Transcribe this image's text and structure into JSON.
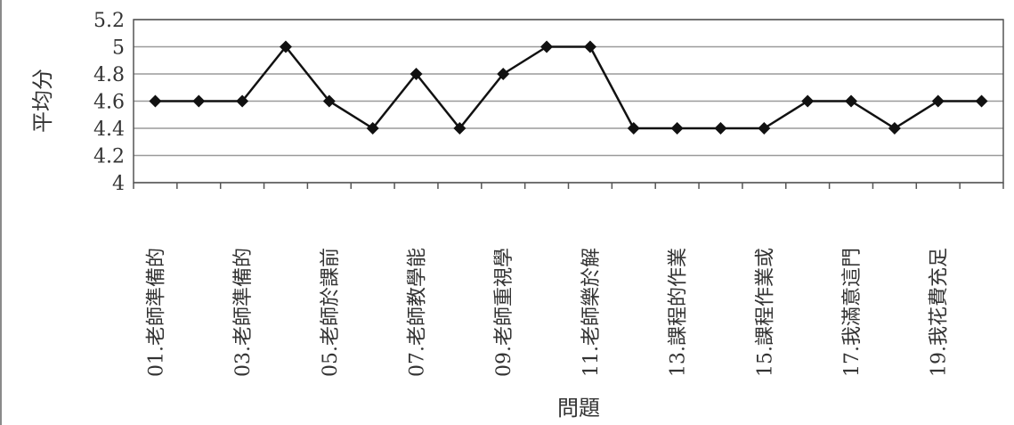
{
  "chart_data": {
    "type": "line",
    "title": "",
    "xlabel": "問題",
    "ylabel": "平均分",
    "ylim": [
      4,
      5.2
    ],
    "yticks": [
      "4",
      "4.2",
      "4.4",
      "4.6",
      "4.8",
      "5",
      "5.2"
    ],
    "grid": true,
    "legend": "none",
    "categories": [
      "01.老師準備的",
      "",
      "03.老師準備的",
      "",
      "05.老師於課前",
      "",
      "07.老師教學能",
      "",
      "09.老師重視學",
      "",
      "11.老師樂於解",
      "",
      "13.課程的作業",
      "",
      "15.課程作業或",
      "",
      "17.我滿意這門",
      "",
      "19.我花費充足",
      ""
    ],
    "series": [
      {
        "name": "",
        "values": [
          4.6,
          4.6,
          4.6,
          5.0,
          4.6,
          4.4,
          4.8,
          4.4,
          4.8,
          5.0,
          5.0,
          4.4,
          4.4,
          4.4,
          4.4,
          4.6,
          4.6,
          4.4,
          4.6,
          4.6
        ]
      }
    ],
    "colors": {
      "line": "#111111",
      "marker": "#111111",
      "grid": "#9a9a9a",
      "frame": "#555555"
    }
  }
}
